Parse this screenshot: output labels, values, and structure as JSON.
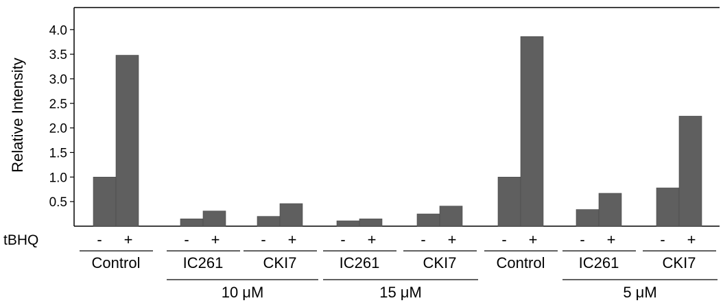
{
  "chart_data": {
    "type": "bar",
    "title": "",
    "ylabel": "Relative Intensity",
    "ylim": [
      0,
      4.45
    ],
    "yticks": [
      "0.5",
      "1.0",
      "1.5",
      "2.0",
      "2.5",
      "3.0",
      "3.5",
      "4.0"
    ],
    "treatment_label": "tBHQ",
    "minus_label": "-",
    "plus_label": "+",
    "bar_color": "#5f5f5f",
    "groups": [
      {
        "name": "Control",
        "minus": 1.0,
        "plus": 3.48
      },
      {
        "name": "IC261",
        "minus": 0.15,
        "plus": 0.31
      },
      {
        "name": "CKI7",
        "minus": 0.2,
        "plus": 0.46
      },
      {
        "name": "IC261",
        "minus": 0.11,
        "plus": 0.15
      },
      {
        "name": "CKI7",
        "minus": 0.25,
        "plus": 0.41
      },
      {
        "name": "Control",
        "minus": 1.0,
        "plus": 3.86
      },
      {
        "name": "IC261",
        "minus": 0.34,
        "plus": 0.67
      },
      {
        "name": "CKI7",
        "minus": 0.78,
        "plus": 2.24
      }
    ],
    "concentrations": [
      {
        "label": "10 μM",
        "groups": [
          1,
          2
        ]
      },
      {
        "label": "15 μM",
        "groups": [
          3,
          4
        ]
      },
      {
        "label": "5 μM",
        "groups": [
          6,
          7
        ]
      }
    ]
  }
}
